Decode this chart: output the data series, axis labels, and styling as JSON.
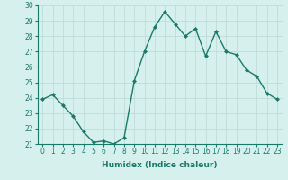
{
  "x": [
    0,
    1,
    2,
    3,
    4,
    5,
    6,
    7,
    8,
    9,
    10,
    11,
    12,
    13,
    14,
    15,
    16,
    17,
    18,
    19,
    20,
    21,
    22,
    23
  ],
  "y": [
    23.9,
    24.2,
    23.5,
    22.8,
    21.8,
    21.1,
    21.2,
    21.0,
    21.4,
    25.1,
    27.0,
    28.6,
    29.6,
    28.8,
    28.0,
    28.5,
    26.7,
    28.3,
    27.0,
    26.8,
    25.8,
    25.4,
    24.3,
    23.9
  ],
  "line_color": "#1a7a6a",
  "marker": "D",
  "marker_size": 2.0,
  "line_width": 1.0,
  "bg_color": "#d6f0ee",
  "grid_color": "#c0dcd8",
  "xlabel": "Humidex (Indice chaleur)",
  "ylim": [
    21,
    30
  ],
  "xlim_min": -0.5,
  "xlim_max": 23.5,
  "yticks": [
    21,
    22,
    23,
    24,
    25,
    26,
    27,
    28,
    29,
    30
  ],
  "xticks": [
    0,
    1,
    2,
    3,
    4,
    5,
    6,
    7,
    8,
    9,
    10,
    11,
    12,
    13,
    14,
    15,
    16,
    17,
    18,
    19,
    20,
    21,
    22,
    23
  ],
  "label_fontsize": 6.5,
  "tick_fontsize": 5.5,
  "tick_color": "#1a7a6a",
  "label_color": "#1a7a6a"
}
